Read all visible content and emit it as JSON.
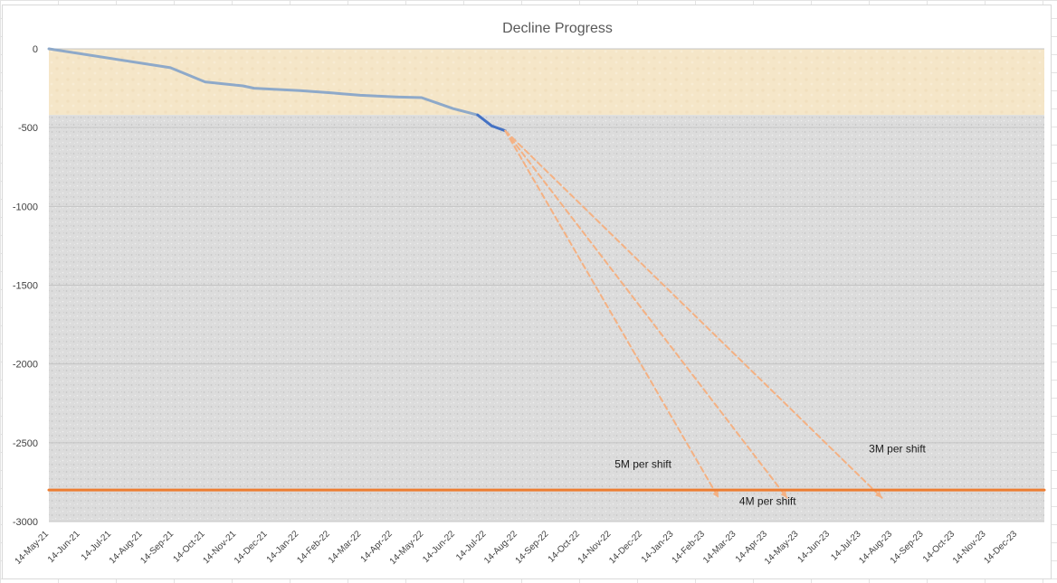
{
  "chart_data": {
    "type": "line",
    "title": "Decline Progress",
    "xlabel": "",
    "ylabel": "",
    "ylim": [
      -3000,
      0
    ],
    "xlim": [
      "2021-05-14",
      "2024-01-14"
    ],
    "yticks": [
      0,
      -500,
      -1000,
      -1500,
      -2000,
      -2500,
      -3000
    ],
    "xticks": [
      "14-May-21",
      "14-Jun-21",
      "14-Jul-21",
      "14-Aug-21",
      "14-Sep-21",
      "14-Oct-21",
      "14-Nov-21",
      "14-Dec-21",
      "14-Jan-22",
      "14-Feb-22",
      "14-Mar-22",
      "14-Apr-22",
      "14-May-22",
      "14-Jun-22",
      "14-Jul-22",
      "14-Aug-22",
      "14-Sep-22",
      "14-Oct-22",
      "14-Nov-22",
      "14-Dec-22",
      "14-Jan-23",
      "14-Feb-23",
      "14-Mar-23",
      "14-Apr-23",
      "14-May-23",
      "14-Jun-23",
      "14-Jul-23",
      "14-Aug-23",
      "14-Sep-23",
      "14-Oct-23",
      "14-Nov-23",
      "14-Dec-23"
    ],
    "bands": [
      {
        "y_from": 0,
        "y_to": -420,
        "color": "#f5e6c8"
      },
      {
        "y_from": -420,
        "y_to": -3000,
        "color": "#dcdcdc"
      }
    ],
    "series": [
      {
        "color": "#8ea9c9",
        "style": "solid",
        "width": 3,
        "x": [
          "2021-05-14",
          "2021-09-10",
          "2021-10-14",
          "2021-11-20",
          "2021-12-01",
          "2022-01-15",
          "2022-02-15",
          "2022-03-15",
          "2022-04-19",
          "2022-05-14",
          "2022-06-14",
          "2022-07-08"
        ],
        "y": [
          0,
          -120,
          -210,
          -235,
          -250,
          -265,
          -280,
          -295,
          -305,
          -310,
          -380,
          -420
        ]
      },
      {
        "color": "#4472c4",
        "style": "solid",
        "width": 3,
        "x": [
          "2022-07-08",
          "2022-07-22",
          "2022-08-04"
        ],
        "y": [
          -420,
          -490,
          -520
        ]
      },
      {
        "color": "#f4b183",
        "style": "dashed",
        "width": 2,
        "x": [
          "2022-08-04",
          "2023-03-01"
        ],
        "y": [
          -520,
          -2850
        ]
      },
      {
        "color": "#f4b183",
        "style": "dashed",
        "width": 2,
        "x": [
          "2022-08-04",
          "2023-05-07"
        ],
        "y": [
          -520,
          -2850
        ]
      },
      {
        "color": "#f4b183",
        "style": "dashed",
        "width": 2,
        "x": [
          "2022-08-04",
          "2023-08-08"
        ],
        "y": [
          -520,
          -2850
        ]
      },
      {
        "color": "#ed7d31",
        "style": "solid",
        "width": 3,
        "x": [
          "2021-05-14",
          "2024-01-14"
        ],
        "y": [
          -2800,
          -2800
        ]
      }
    ],
    "annotations": [
      {
        "text": "5M per shift",
        "x": "2022-12-17",
        "y": -2660
      },
      {
        "text": "4M per shift",
        "x": "2023-04-18",
        "y": -2895
      },
      {
        "text": "3M per shift",
        "x": "2023-08-23",
        "y": -2560
      }
    ]
  }
}
